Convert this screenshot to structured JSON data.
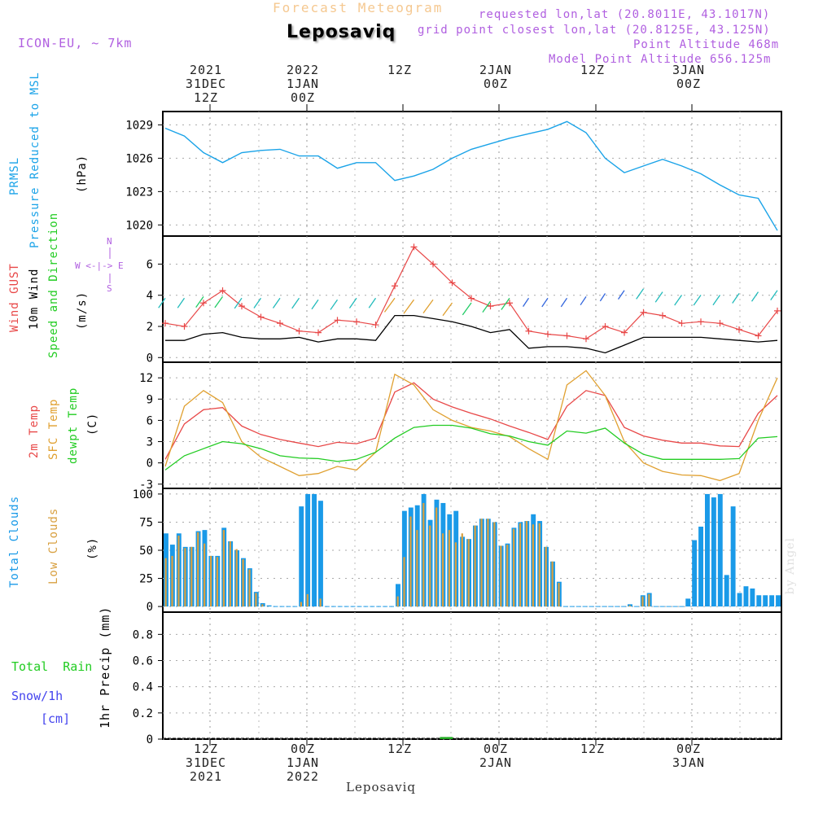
{
  "header": {
    "title_top": "Forecast Meteogram",
    "location": "Leposaviq",
    "model": "ICON-EU, ~ 7km",
    "requested": "requested lon,lat (20.8011E, 43.1017N)",
    "grid_point": "grid point closest lon,lat (20.8125E, 43.125N)",
    "point_altitude": "Point Altitude 468m",
    "model_altitude": "Model Point Altitude 656.125m"
  },
  "time_axis": {
    "top_labels": [
      {
        "lines": [
          "2021",
          "31DEC",
          "12Z"
        ]
      },
      {
        "lines": [
          "2022",
          "1JAN",
          "00Z"
        ]
      },
      {
        "lines": [
          "",
          "",
          "12Z"
        ]
      },
      {
        "lines": [
          "",
          "2JAN",
          "00Z"
        ]
      },
      {
        "lines": [
          "",
          "",
          "12Z"
        ]
      },
      {
        "lines": [
          "",
          "3JAN",
          "00Z"
        ]
      }
    ],
    "bottom_labels": [
      {
        "lines": [
          "12Z",
          "31DEC",
          "2021"
        ]
      },
      {
        "lines": [
          "00Z",
          "1JAN",
          "2022"
        ]
      },
      {
        "lines": [
          "12Z",
          "",
          ""
        ]
      },
      {
        "lines": [
          "00Z",
          "2JAN",
          ""
        ]
      },
      {
        "lines": [
          "12Z",
          "",
          ""
        ]
      },
      {
        "lines": [
          "00Z",
          "3JAN",
          ""
        ]
      }
    ]
  },
  "panel_labels": {
    "pressure": {
      "series1": "PRMSL",
      "series2": "Pressure Reduced to MSL",
      "unit": "(hPa)"
    },
    "wind": {
      "gust": "Wind GUST",
      "wind10": "10m Wind",
      "dir": "Speed and Direction",
      "unit": "(m/s)",
      "compass_ns": [
        "N",
        "S"
      ],
      "compass_we": "W <-|-> E"
    },
    "temp": {
      "t2m": "2m Temp",
      "sfc": "SFC Temp",
      "dew": "dewpt Temp",
      "unit": "(C)"
    },
    "clouds": {
      "total": "Total Clouds",
      "low": "Low Clouds",
      "unit": "(%)"
    },
    "precip": {
      "rain": "Total  Rain",
      "snow": "Snow/1h",
      "snow_unit": "[cm]",
      "axis": "1hr Precip (mm)"
    }
  },
  "colors": {
    "pressure": "#1aa3e8",
    "gust": "#e84848",
    "wind10": "#000000",
    "t2m": "#e84848",
    "sfc": "#e0a030",
    "dew": "#22cc22",
    "total_clouds": "#1a9ae8",
    "low_clouds": "#d8a040",
    "rain": "#22aa22",
    "purple": "#b05fe0"
  },
  "chart_data": [
    {
      "type": "line",
      "title": "PRMSL Pressure Reduced to MSL",
      "ylabel": "(hPa)",
      "x_hours": [
        0,
        3,
        6,
        9,
        12,
        15,
        18,
        21,
        24,
        27,
        30,
        33,
        36,
        39,
        42,
        45,
        48,
        51,
        54,
        57,
        60,
        63,
        66,
        69,
        72,
        75,
        78,
        81,
        84,
        87,
        90,
        93,
        95
      ],
      "series": [
        {
          "name": "PRMSL",
          "values": [
            1028.7,
            1028.0,
            1026.5,
            1025.6,
            1026.5,
            1026.7,
            1026.8,
            1026.2,
            1026.2,
            1025.1,
            1025.6,
            1025.6,
            1024.0,
            1024.4,
            1025.0,
            1026.0,
            1026.8,
            1027.3,
            1027.8,
            1028.2,
            1028.6,
            1029.3,
            1028.3,
            1026.0,
            1024.7,
            1025.3,
            1025.9,
            1025.3,
            1024.6,
            1023.6,
            1022.7,
            1022.4,
            1019.5
          ]
        }
      ],
      "yticks": [
        1020,
        1023,
        1026,
        1029
      ],
      "ylim": [
        1019.0,
        1030.2
      ]
    },
    {
      "type": "line",
      "title": "Wind GUST / 10m Wind Speed and Direction",
      "ylabel": "(m/s)",
      "x_hours": [
        0,
        3,
        6,
        9,
        12,
        15,
        18,
        21,
        24,
        27,
        30,
        33,
        36,
        39,
        42,
        45,
        48,
        51,
        54,
        57,
        60,
        63,
        66,
        69,
        72,
        75,
        78,
        81,
        84,
        87,
        90,
        93,
        95
      ],
      "series": [
        {
          "name": "Wind GUST",
          "values": [
            2.2,
            2.0,
            3.5,
            4.3,
            3.3,
            2.6,
            2.2,
            1.7,
            1.6,
            2.4,
            2.3,
            2.1,
            4.6,
            7.1,
            6.0,
            4.8,
            3.8,
            3.3,
            3.5,
            1.7,
            1.5,
            1.4,
            1.2,
            2.0,
            1.6,
            2.9,
            2.7,
            2.2,
            2.3,
            2.2,
            1.8,
            1.4,
            3.0
          ]
        },
        {
          "name": "10m Wind",
          "values": [
            1.1,
            1.1,
            1.5,
            1.6,
            1.3,
            1.2,
            1.2,
            1.3,
            1.0,
            1.2,
            1.2,
            1.1,
            2.7,
            2.7,
            2.5,
            2.3,
            2.0,
            1.6,
            1.8,
            0.6,
            0.7,
            0.7,
            0.6,
            0.3,
            0.8,
            1.3,
            1.3,
            1.3,
            1.3,
            1.2,
            1.1,
            1.0,
            1.1
          ]
        }
      ],
      "wind_barb_heights": [
        3.5,
        3.5,
        3.6,
        3.6,
        3.5,
        3.5,
        3.5,
        3.5,
        3.4,
        3.4,
        3.5,
        3.5,
        3.5,
        3.4,
        3.4,
        3.2,
        3.2,
        3.3,
        3.5,
        3.5,
        3.5,
        3.5,
        3.6,
        3.8,
        4.0,
        4.1,
        3.9,
        3.7,
        3.7,
        3.7,
        3.8,
        3.9,
        4.0
      ],
      "yticks": [
        0,
        2,
        4,
        6
      ],
      "ylim": [
        -0.3,
        7.8
      ]
    },
    {
      "type": "line",
      "title": "2m Temp / SFC Temp / dewpt Temp",
      "ylabel": "(C)",
      "x_hours": [
        0,
        3,
        6,
        9,
        12,
        15,
        18,
        21,
        24,
        27,
        30,
        33,
        36,
        39,
        42,
        45,
        48,
        51,
        54,
        57,
        60,
        63,
        66,
        69,
        72,
        75,
        78,
        81,
        84,
        87,
        90,
        93,
        95
      ],
      "series": [
        {
          "name": "2m Temp",
          "values": [
            0.5,
            5.5,
            7.5,
            7.8,
            5.2,
            4.0,
            3.3,
            2.8,
            2.3,
            2.9,
            2.7,
            3.5,
            10.0,
            11.3,
            9.0,
            7.9,
            7.0,
            6.2,
            5.2,
            4.3,
            3.3,
            8.0,
            10.2,
            9.5,
            5.0,
            3.8,
            3.2,
            2.8,
            2.8,
            2.4,
            2.3,
            7.0,
            9.5
          ]
        },
        {
          "name": "SFC Temp",
          "values": [
            -0.5,
            8.0,
            10.2,
            8.5,
            3.0,
            0.8,
            -0.5,
            -1.8,
            -1.5,
            -0.5,
            -1.0,
            1.5,
            12.5,
            11.0,
            7.5,
            6.0,
            5.0,
            4.5,
            3.7,
            2.0,
            0.5,
            11.0,
            13.0,
            9.5,
            3.0,
            0.0,
            -1.2,
            -1.7,
            -1.8,
            -2.5,
            -1.5,
            6.0,
            12.0
          ]
        },
        {
          "name": "dewpt Temp",
          "values": [
            -1.0,
            1.0,
            2.0,
            3.0,
            2.7,
            2.0,
            1.0,
            0.7,
            0.6,
            0.2,
            0.5,
            1.5,
            3.5,
            5.0,
            5.3,
            5.3,
            4.9,
            4.1,
            3.8,
            3.0,
            2.5,
            4.5,
            4.2,
            4.9,
            2.8,
            1.2,
            0.5,
            0.5,
            0.5,
            0.5,
            0.6,
            3.5,
            3.7
          ]
        }
      ],
      "yticks": [
        -3,
        0,
        3,
        6,
        9,
        12
      ],
      "ylim": [
        -3.6,
        14.2
      ]
    },
    {
      "type": "bar",
      "title": "Total Clouds / Low Clouds",
      "ylabel": "(%)",
      "x_hours": [
        0,
        1,
        2,
        3,
        4,
        5,
        6,
        7,
        8,
        9,
        10,
        11,
        12,
        13,
        14,
        15,
        16,
        17,
        18,
        19,
        20,
        21,
        22,
        23,
        24,
        25,
        26,
        27,
        28,
        29,
        30,
        31,
        32,
        33,
        34,
        35,
        36,
        37,
        38,
        39,
        40,
        41,
        42,
        43,
        44,
        45,
        46,
        47,
        48,
        49,
        50,
        51,
        52,
        53,
        54,
        55,
        56,
        57,
        58,
        59,
        60,
        61,
        62,
        63,
        64,
        65,
        66,
        67,
        68,
        69,
        70,
        71,
        72,
        73,
        74,
        75,
        76,
        77,
        78,
        79,
        80,
        81,
        82,
        83,
        84,
        85,
        86,
        87,
        88,
        89,
        90,
        91,
        92,
        93,
        94,
        95
      ],
      "series": [
        {
          "name": "Total Clouds",
          "values": [
            65,
            55,
            65,
            53,
            53,
            67,
            68,
            45,
            45,
            70,
            58,
            50,
            43,
            34,
            13,
            3,
            1,
            0,
            0,
            0,
            0,
            89,
            100,
            100,
            94,
            0,
            0,
            0,
            0,
            0,
            0,
            0,
            0,
            0,
            0,
            0,
            20,
            85,
            88,
            90,
            100,
            77,
            95,
            92,
            82,
            85,
            62,
            60,
            72,
            78,
            78,
            75,
            54,
            56,
            70,
            75,
            76,
            82,
            76,
            53,
            40,
            22,
            0,
            0,
            0,
            0,
            0,
            0,
            0,
            0,
            0,
            0,
            2,
            0,
            10,
            12,
            0,
            0,
            0,
            0,
            0,
            7,
            59,
            71,
            100,
            97,
            100,
            28,
            89,
            12,
            18,
            16,
            10,
            10,
            10,
            10
          ]
        },
        {
          "name": "Low Clouds",
          "values": [
            43,
            45,
            63,
            52,
            53,
            66,
            56,
            45,
            44,
            68,
            58,
            51,
            42,
            33,
            12,
            2,
            0,
            0,
            0,
            0,
            0,
            4,
            11,
            0,
            7,
            0,
            0,
            0,
            0,
            0,
            0,
            0,
            0,
            0,
            0,
            0,
            9,
            44,
            80,
            68,
            92,
            72,
            88,
            65,
            68,
            57,
            65,
            60,
            72,
            78,
            78,
            75,
            54,
            55,
            69,
            74,
            76,
            73,
            74,
            53,
            40,
            21,
            0,
            0,
            0,
            0,
            0,
            0,
            0,
            0,
            0,
            0,
            1,
            0,
            9,
            11,
            0,
            0,
            0,
            0,
            0,
            0,
            0,
            0,
            0,
            0,
            0,
            0,
            0,
            0,
            0,
            0,
            0,
            0,
            0,
            0
          ]
        }
      ],
      "yticks": [
        0,
        25,
        50,
        75,
        100
      ],
      "ylim": [
        -5,
        105
      ]
    },
    {
      "type": "bar",
      "title": "1hr Precip",
      "ylabel": "1hr Precip (mm)",
      "x_hours": [
        43,
        44
      ],
      "series": [
        {
          "name": "Total Rain",
          "values": [
            0.01,
            0.01
          ]
        }
      ],
      "yticks": [
        0,
        0.2,
        0.4,
        0.6,
        0.8
      ],
      "ylim": [
        0,
        0.97
      ]
    }
  ]
}
